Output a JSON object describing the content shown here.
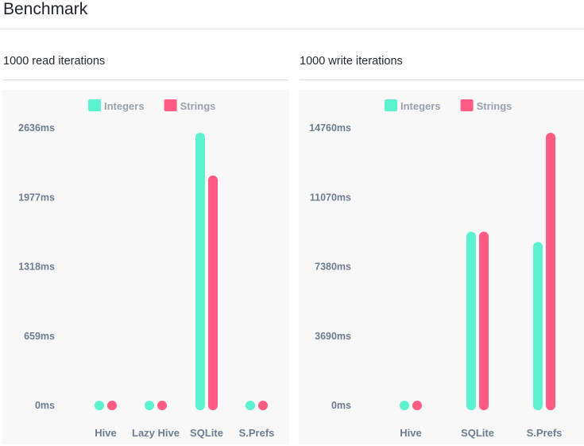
{
  "page": {
    "title": "Benchmark"
  },
  "colors": {
    "integers": "#5df2cf",
    "strings": "#ff5b83",
    "panel_bg": "#f8f8f8",
    "axis_text": "#6f7d91",
    "legend_text": "#9aa2ad"
  },
  "sections": [
    {
      "heading": "1000 read iterations"
    },
    {
      "heading": "1000 write iterations"
    }
  ],
  "chart_data": [
    {
      "type": "bar",
      "categories": [
        "Hive",
        "Lazy Hive",
        "SQLite",
        "S.Prefs"
      ],
      "series": [
        {
          "name": "Integers",
          "values": [
            0,
            0,
            2636,
            0
          ]
        },
        {
          "name": "Strings",
          "values": [
            0,
            0,
            2230,
            0
          ]
        }
      ],
      "yticks": [
        "0ms",
        "659ms",
        "1318ms",
        "1977ms",
        "2636ms"
      ],
      "ylim": [
        0,
        2636
      ],
      "legend_position": "top",
      "grid": false
    },
    {
      "type": "bar",
      "categories": [
        "Hive",
        "SQLite",
        "S.Prefs"
      ],
      "series": [
        {
          "name": "Integers",
          "values": [
            0,
            9500,
            8950
          ]
        },
        {
          "name": "Strings",
          "values": [
            0,
            9500,
            14760
          ]
        }
      ],
      "yticks": [
        "0ms",
        "3690ms",
        "7380ms",
        "11070ms",
        "14760ms"
      ],
      "ylim": [
        0,
        14760
      ],
      "legend_position": "top",
      "grid": false
    }
  ]
}
